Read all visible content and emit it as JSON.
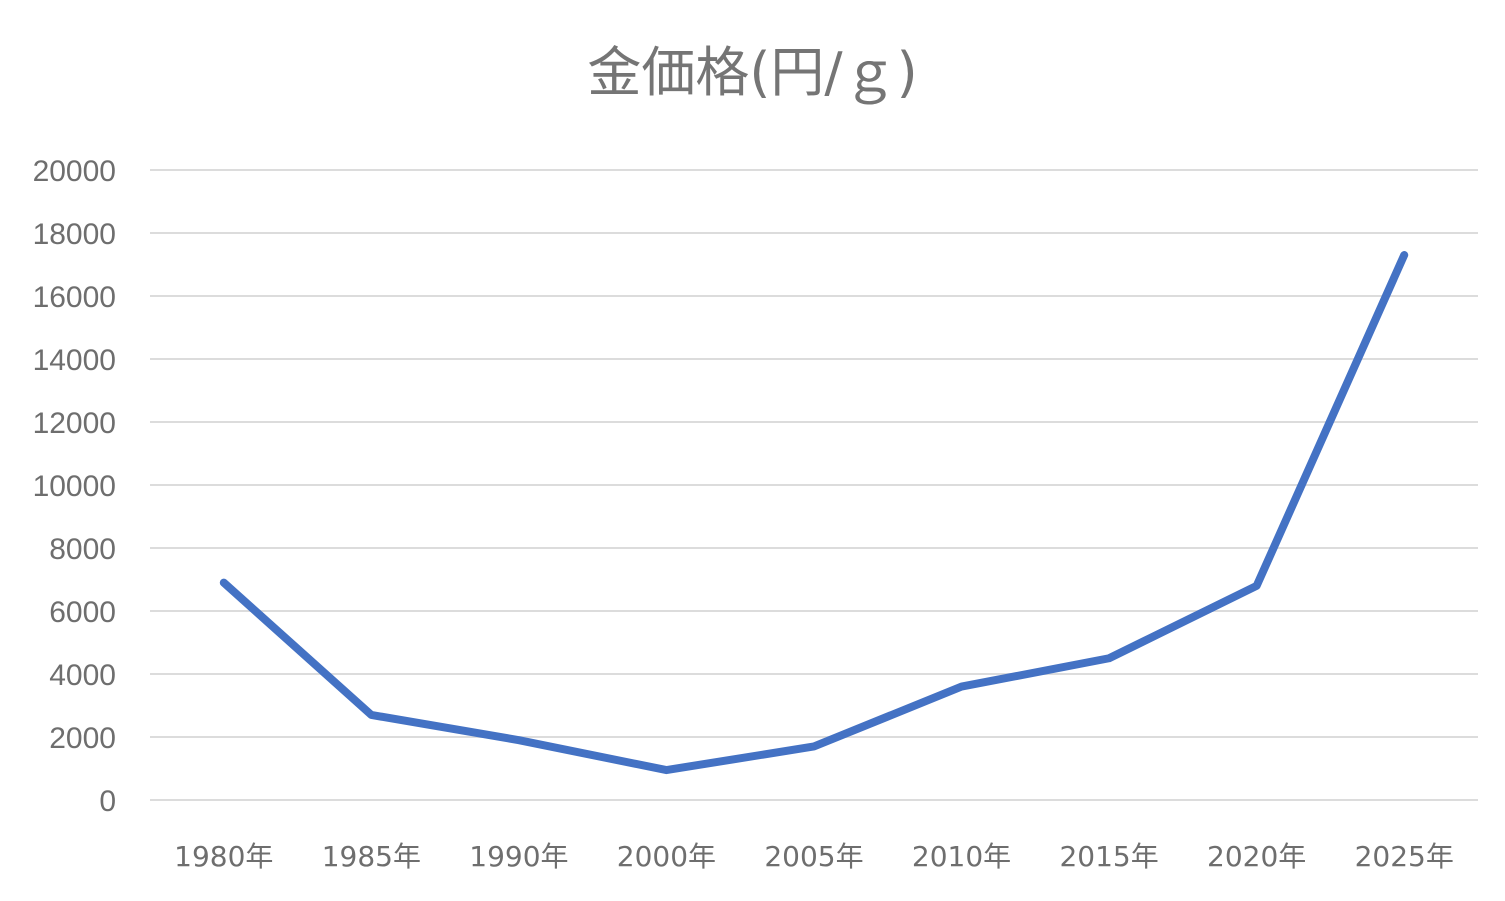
{
  "chart_data": {
    "type": "line",
    "title": "金価格(円/ｇ)",
    "categories": [
      "1980年",
      "1985年",
      "1990年",
      "2000年",
      "2005年",
      "2010年",
      "2015年",
      "2020年",
      "2025年"
    ],
    "series": [
      {
        "values": [
          6900,
          2700,
          1900,
          950,
          1700,
          3600,
          4500,
          6800,
          17300
        ]
      }
    ],
    "y_ticks": [
      "0",
      "2000",
      "4000",
      "6000",
      "8000",
      "10000",
      "12000",
      "14000",
      "16000",
      "18000",
      "20000"
    ],
    "ylim": [
      0,
      20000
    ],
    "xlabel": "",
    "ylabel": "",
    "grid": true,
    "legend": "none",
    "colors": {
      "series": "#4472c4",
      "grid": "#dcdcdc",
      "text": "#6e6e6e"
    }
  }
}
